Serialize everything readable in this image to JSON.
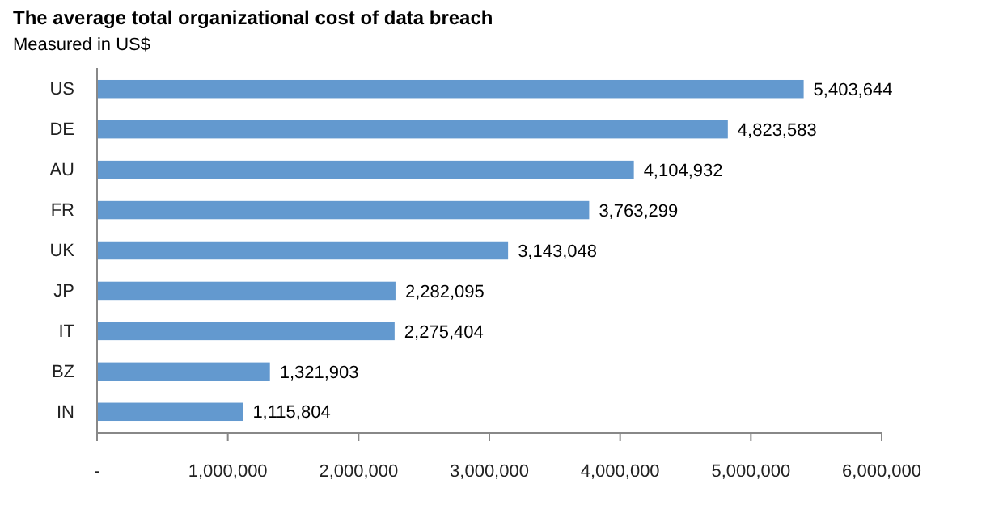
{
  "chart_data": {
    "type": "bar",
    "orientation": "horizontal",
    "title": "The average total organizational cost of data breach",
    "subtitle": "Measured in US$",
    "categories": [
      "US",
      "DE",
      "AU",
      "FR",
      "UK",
      "JP",
      "IT",
      "BZ",
      "IN"
    ],
    "values": [
      5403644,
      4823583,
      4104932,
      3763299,
      3143048,
      2282095,
      2275404,
      1321903,
      1115804
    ],
    "value_labels": [
      "5,403,644",
      "4,823,583",
      "4,104,932",
      "3,763,299",
      "3,143,048",
      "2,282,095",
      "2,275,404",
      "1,321,903",
      "1,115,804"
    ],
    "color": "#6399cf",
    "xlim": [
      0,
      6000000
    ],
    "xticks": [
      {
        "value": 0,
        "label": "-"
      },
      {
        "value": 1000000,
        "label": "1,000,000"
      },
      {
        "value": 2000000,
        "label": "2,000,000"
      },
      {
        "value": 3000000,
        "label": "3,000,000"
      },
      {
        "value": 4000000,
        "label": "4,000,000"
      },
      {
        "value": 5000000,
        "label": "5,000,000"
      },
      {
        "value": 6000000,
        "label": "6,000,000"
      }
    ],
    "grid": false
  }
}
